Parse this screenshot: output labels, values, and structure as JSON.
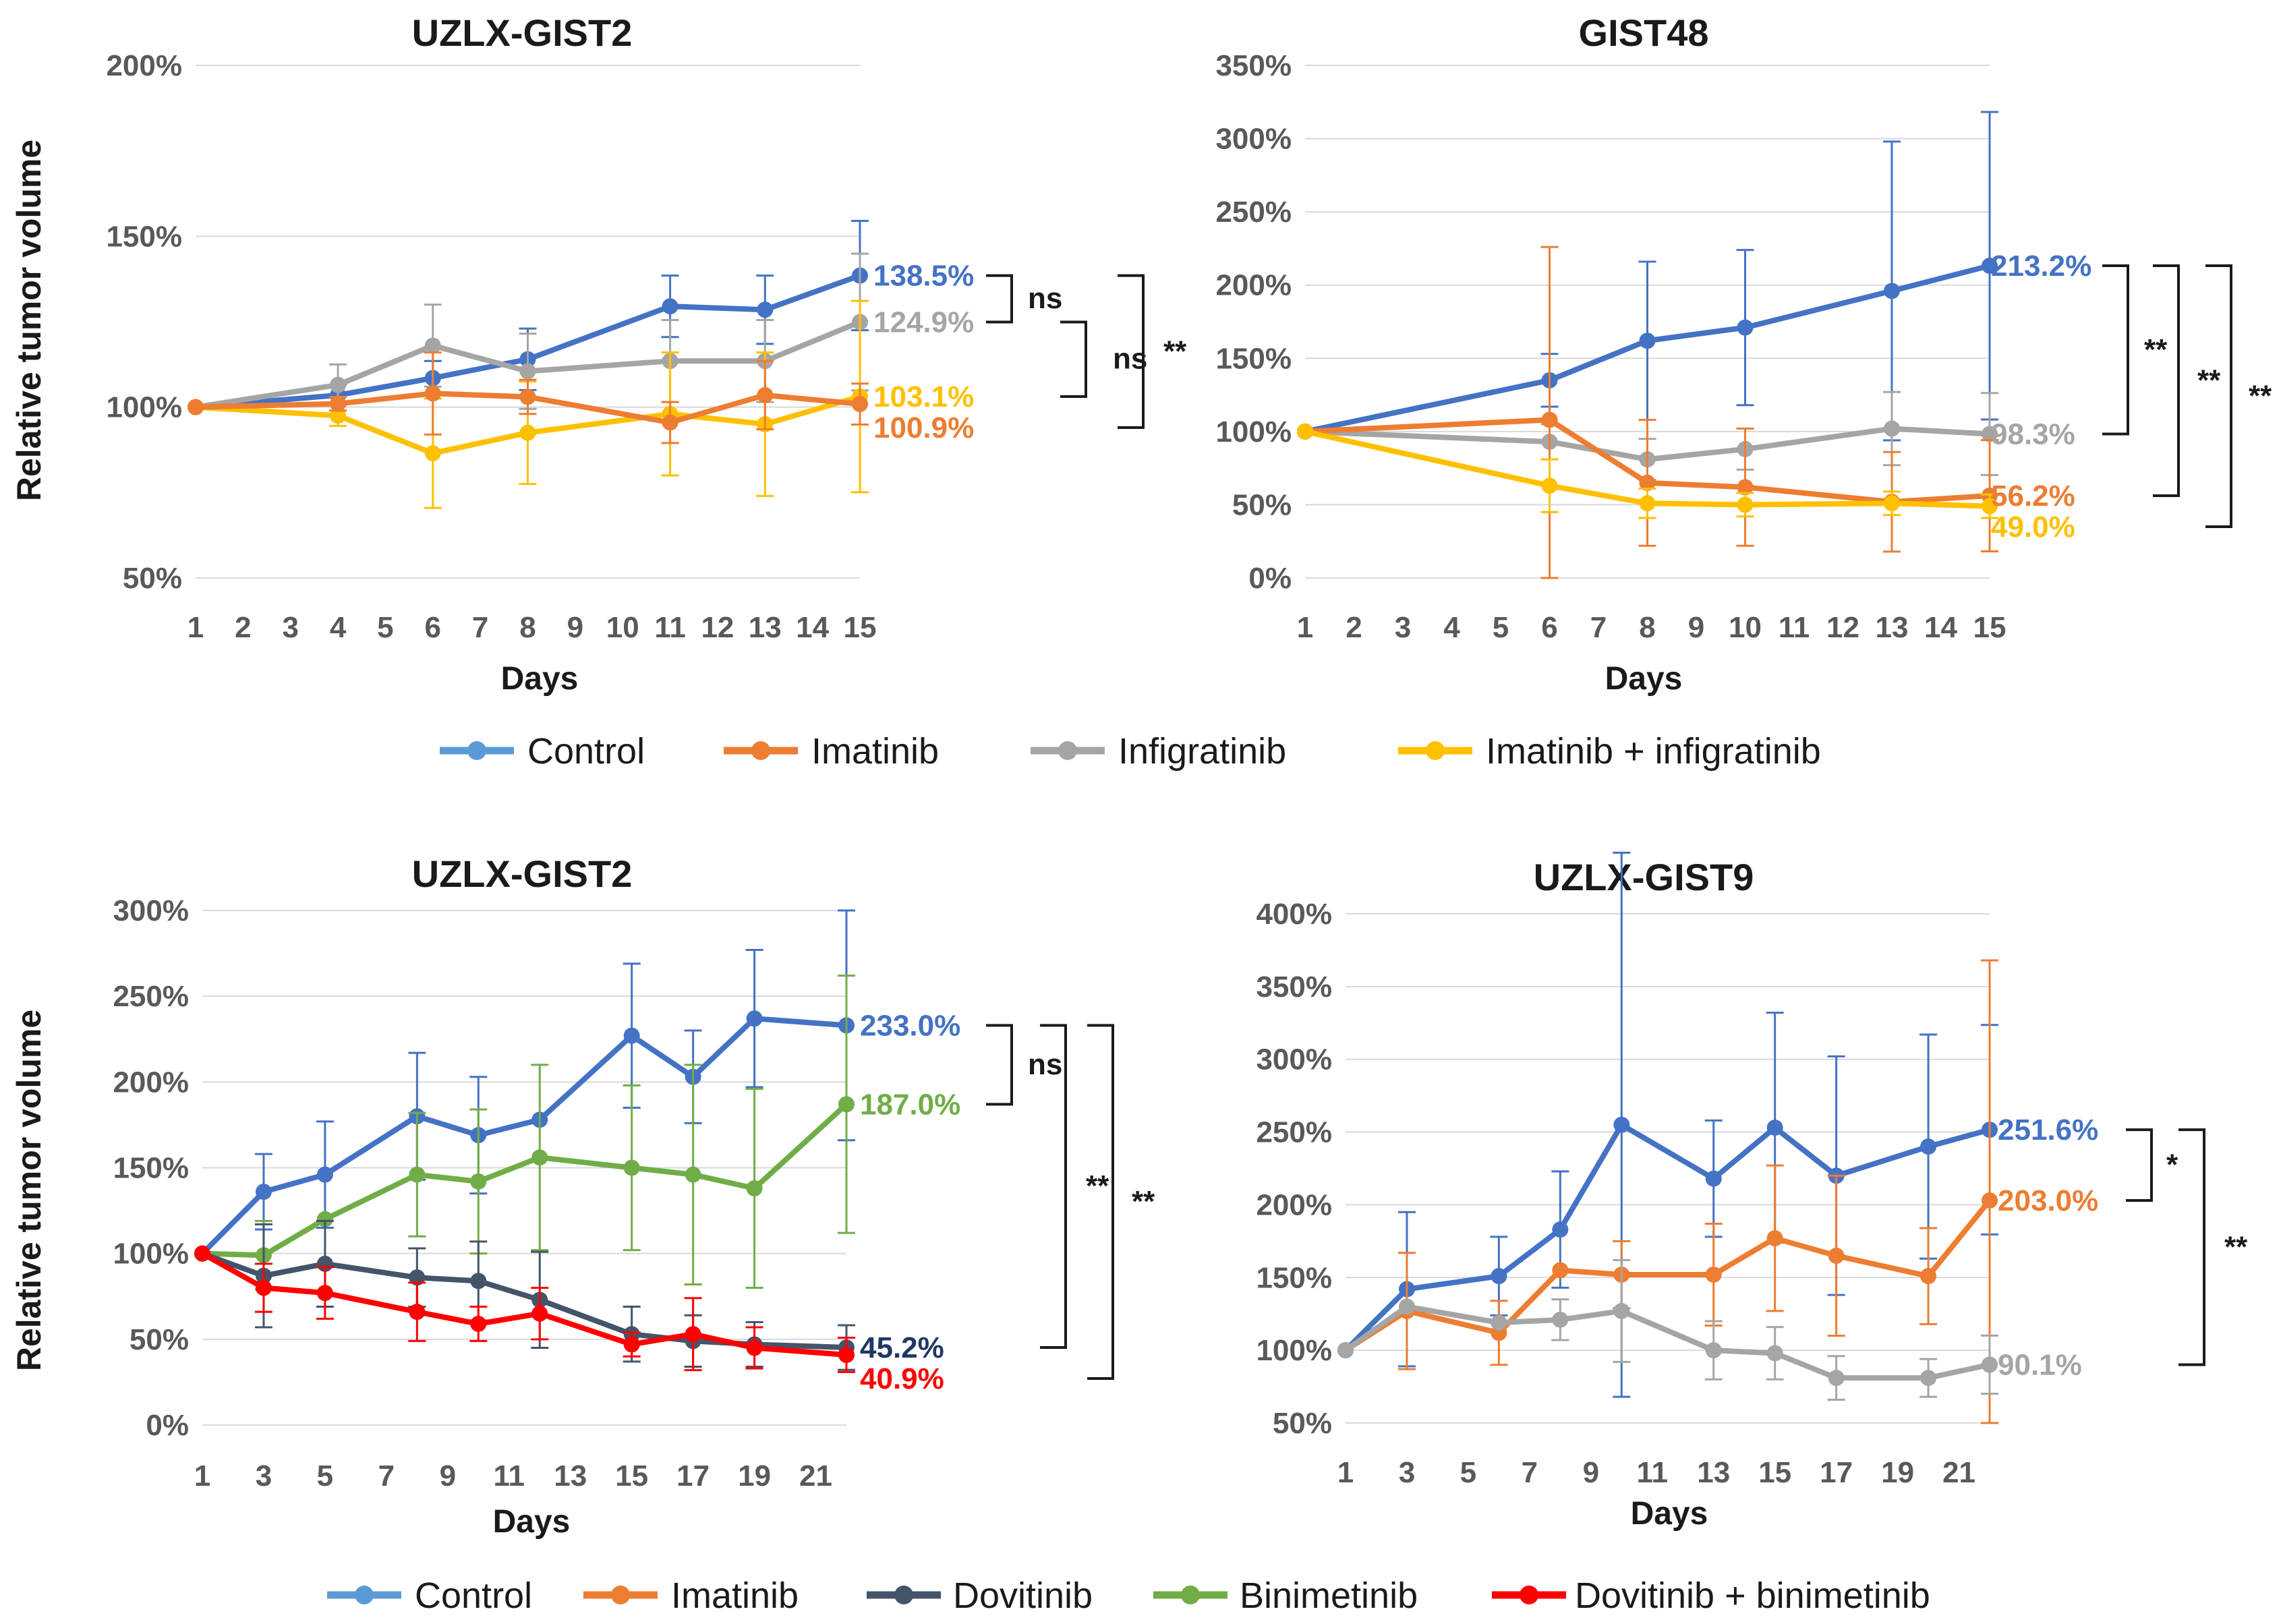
{
  "legend_top": [
    "Control",
    "Imatinib",
    "Infigratinib",
    "Imatinib + infigratinib"
  ],
  "legend_bottom": [
    "Control",
    "Imatinib",
    "Dovitinib",
    "Binimetinib",
    "Dovitinib + binimetinib"
  ],
  "colors": {
    "Control": "#4472C4",
    "Imatinib": "#ED7D31",
    "Infigratinib": "#A5A5A5",
    "Imatinib + infigratinib": "#FFC000",
    "Dovitinib": "#44546A",
    "Binimetinib": "#70AD47",
    "Dovitinib + binimetinib": "#FF0000"
  },
  "chart_data": [
    {
      "id": "p1",
      "type": "line",
      "title": "UZLX-GIST2",
      "xlabel": "Days",
      "ylabel": "Relative tumor volume",
      "xlim": [
        1,
        15
      ],
      "xticks": [
        1,
        2,
        3,
        4,
        5,
        6,
        7,
        8,
        9,
        10,
        11,
        12,
        13,
        14,
        15
      ],
      "ylim": [
        50,
        200
      ],
      "yticks": [
        50,
        100,
        150,
        200
      ],
      "yticklabels": [
        "50%",
        "100%",
        "150%",
        "200%"
      ],
      "legend": "legend_top",
      "series": [
        {
          "name": "Control",
          "x": [
            1,
            4,
            6,
            8,
            11,
            13,
            15
          ],
          "y": [
            100,
            103.5,
            108.5,
            114,
            129.5,
            128.5,
            138.5
          ],
          "err": [
            0,
            3,
            5,
            9,
            9,
            10,
            16
          ],
          "end_label": "138.5%"
        },
        {
          "name": "Infigratinib",
          "x": [
            1,
            4,
            6,
            8,
            11,
            13,
            15
          ],
          "y": [
            100,
            106.5,
            118,
            110.5,
            113.5,
            113.5,
            124.9
          ],
          "err": [
            0,
            6,
            12,
            11,
            12,
            12,
            20
          ],
          "end_label": "124.9%"
        },
        {
          "name": "Imatinib + infigratinib",
          "x": [
            1,
            4,
            6,
            8,
            11,
            13,
            15
          ],
          "y": [
            100,
            97.5,
            86.5,
            92.5,
            98,
            95,
            103.1
          ],
          "err": [
            0,
            3,
            16,
            15,
            18,
            21,
            28
          ],
          "end_label": "103.1%"
        },
        {
          "name": "Imatinib",
          "x": [
            1,
            4,
            6,
            8,
            11,
            13,
            15
          ],
          "y": [
            100,
            101,
            104,
            103,
            95.5,
            103.5,
            100.9
          ],
          "err": [
            0,
            2,
            12,
            5,
            6,
            10,
            6
          ],
          "end_label": "100.9%"
        }
      ],
      "significance": [
        {
          "pair": [
            "Control",
            "Infigratinib"
          ],
          "label": "ns"
        },
        {
          "pair": [
            "Infigratinib",
            "Imatinib + infigratinib"
          ],
          "label": "ns"
        },
        {
          "pair": [
            "Control",
            "Imatinib"
          ],
          "label": "**"
        }
      ]
    },
    {
      "id": "p2",
      "type": "line",
      "title": "GIST48",
      "xlabel": "Days",
      "ylabel": "",
      "xlim": [
        1,
        15
      ],
      "xticks": [
        1,
        2,
        3,
        4,
        5,
        6,
        7,
        8,
        9,
        10,
        11,
        12,
        13,
        14,
        15
      ],
      "ylim": [
        0,
        350
      ],
      "yticks": [
        0,
        50,
        100,
        150,
        200,
        250,
        300,
        350
      ],
      "yticklabels": [
        "0%",
        "50%",
        "100%",
        "150%",
        "200%",
        "250%",
        "300%",
        "350%"
      ],
      "legend": "legend_top",
      "series": [
        {
          "name": "Control",
          "x": [
            1,
            6,
            8,
            10,
            13,
            15
          ],
          "y": [
            100,
            135,
            162,
            171,
            196,
            213.2
          ],
          "err": [
            0,
            18,
            54,
            53,
            102,
            105
          ],
          "end_label": "213.2%"
        },
        {
          "name": "Infigratinib",
          "x": [
            1,
            6,
            8,
            10,
            13,
            15
          ],
          "y": [
            100,
            93,
            81,
            88,
            102,
            98.3
          ],
          "err": [
            0,
            12,
            14,
            14,
            25,
            28
          ],
          "end_label": "98.3%"
        },
        {
          "name": "Imatinib",
          "x": [
            1,
            6,
            8,
            10,
            13,
            15
          ],
          "y": [
            100,
            108,
            65,
            62,
            52,
            56.2
          ],
          "err": [
            0,
            118,
            43,
            40,
            34,
            38
          ],
          "end_label": "56.2%"
        },
        {
          "name": "Imatinib + infigratinib",
          "x": [
            1,
            6,
            8,
            10,
            13,
            15
          ],
          "y": [
            100,
            63,
            51,
            50,
            51,
            49.0
          ],
          "err": [
            0,
            18,
            10,
            8,
            8,
            8
          ],
          "end_label": "49.0%"
        }
      ],
      "significance": [
        {
          "pair": [
            "Control",
            "Infigratinib"
          ],
          "label": "**"
        },
        {
          "pair": [
            "Control",
            "Imatinib"
          ],
          "label": "**"
        },
        {
          "pair": [
            "Control",
            "Imatinib + infigratinib"
          ],
          "label": "**"
        }
      ]
    },
    {
      "id": "p3",
      "type": "line",
      "title": "UZLX-GIST2",
      "xlabel": "Days",
      "ylabel": "Relative tumor volume",
      "xlim": [
        1,
        22
      ],
      "xticks": [
        1,
        3,
        5,
        7,
        9,
        11,
        13,
        15,
        17,
        19,
        21
      ],
      "ylim": [
        0,
        300
      ],
      "yticks": [
        0,
        50,
        100,
        150,
        200,
        250,
        300
      ],
      "yticklabels": [
        "0%",
        "50%",
        "100%",
        "150%",
        "200%",
        "250%",
        "300%"
      ],
      "legend": "legend_bottom",
      "series": [
        {
          "name": "Control",
          "x": [
            1,
            3,
            5,
            8,
            10,
            12,
            15,
            17,
            19,
            22
          ],
          "y": [
            100,
            136,
            146,
            180,
            169,
            178,
            227,
            203,
            237,
            233.0
          ],
          "err": [
            0,
            22,
            31,
            37,
            34,
            0,
            42,
            27,
            40,
            67
          ],
          "end_label": "233.0%"
        },
        {
          "name": "Binimetinib",
          "x": [
            1,
            3,
            5,
            8,
            10,
            12,
            15,
            17,
            19,
            22
          ],
          "y": [
            100,
            99,
            120,
            146,
            142,
            156,
            150,
            146,
            138,
            187.0
          ],
          "err": [
            0,
            20,
            0,
            36,
            42,
            54,
            48,
            64,
            58,
            75
          ],
          "end_label": "187.0%"
        },
        {
          "name": "Dovitinib",
          "x": [
            1,
            3,
            5,
            8,
            10,
            12,
            15,
            17,
            19,
            22
          ],
          "y": [
            100,
            87,
            94,
            86,
            84,
            73,
            53,
            49,
            47,
            45.2
          ],
          "err": [
            0,
            30,
            25,
            17,
            23,
            28,
            16,
            15,
            13,
            13
          ],
          "end_label": "45.2%"
        },
        {
          "name": "Dovitinib + binimetinib",
          "x": [
            1,
            3,
            5,
            8,
            10,
            12,
            15,
            17,
            19,
            22
          ],
          "y": [
            100,
            80,
            77,
            66,
            59,
            65,
            47,
            53,
            45,
            40.9
          ],
          "err": [
            0,
            14,
            15,
            17,
            10,
            15,
            7,
            21,
            12,
            10
          ],
          "end_label": "40.9%"
        }
      ],
      "significance": [
        {
          "pair": [
            "Control",
            "Binimetinib"
          ],
          "label": "ns"
        },
        {
          "pair": [
            "Control",
            "Dovitinib"
          ],
          "label": "**"
        },
        {
          "pair": [
            "Control",
            "Dovitinib + binimetinib"
          ],
          "label": "**"
        }
      ]
    },
    {
      "id": "p4",
      "type": "line",
      "title": "UZLX-GIST9",
      "xlabel": "Days",
      "ylabel": "",
      "xlim": [
        1,
        22
      ],
      "xticks": [
        1,
        3,
        5,
        7,
        9,
        11,
        13,
        15,
        17,
        19,
        21
      ],
      "ylim": [
        50,
        400
      ],
      "yticks": [
        50,
        100,
        150,
        200,
        250,
        300,
        350,
        400
      ],
      "yticklabels": [
        "50%",
        "100%",
        "150%",
        "200%",
        "250%",
        "300%",
        "350%",
        "400%"
      ],
      "legend": "legend_bottom",
      "series": [
        {
          "name": "Control",
          "x": [
            1,
            3,
            6,
            8,
            10,
            13,
            15,
            17,
            20,
            22
          ],
          "y": [
            100,
            142,
            151,
            183,
            255,
            218,
            253,
            220,
            240,
            251.6
          ],
          "err": [
            0,
            53,
            27,
            40,
            187,
            40,
            79,
            82,
            77,
            72
          ],
          "end_label": "251.6%"
        },
        {
          "name": "Imatinib",
          "x": [
            1,
            3,
            6,
            8,
            10,
            13,
            15,
            17,
            20,
            22
          ],
          "y": [
            100,
            127,
            112,
            155,
            152,
            152,
            177,
            165,
            151,
            203.0
          ],
          "err": [
            0,
            40,
            22,
            0,
            23,
            35,
            50,
            55,
            33,
            165
          ],
          "end_label": "203.0%"
        },
        {
          "name": "Infigratinib",
          "x": [
            1,
            3,
            6,
            8,
            10,
            13,
            15,
            17,
            20,
            22
          ],
          "y": [
            100,
            130,
            119,
            121,
            127,
            100,
            98,
            81,
            81,
            90.1
          ],
          "err": [
            0,
            0,
            0,
            14,
            35,
            20,
            18,
            15,
            13,
            20
          ],
          "end_label": "90.1%"
        }
      ],
      "significance": [
        {
          "pair": [
            "Control",
            "Imatinib"
          ],
          "label": "*"
        },
        {
          "pair": [
            "Control",
            "Infigratinib"
          ],
          "label": "**"
        }
      ]
    }
  ]
}
